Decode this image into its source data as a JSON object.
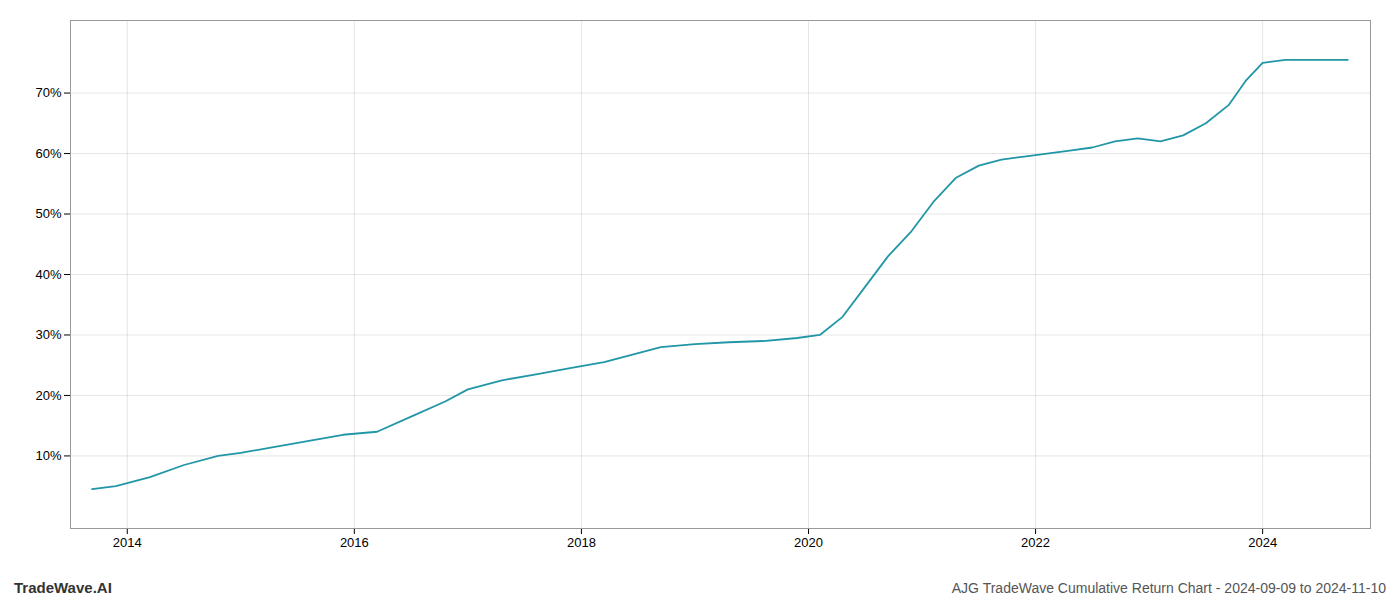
{
  "chart_data": {
    "type": "line",
    "title": "AJG TradeWave Cumulative Return Chart - 2024-09-09 to 2024-11-10",
    "annotations": [
      "TradeWave.AI"
    ],
    "color": "#2196a6",
    "x": [
      2013.69,
      2013.9,
      2014.2,
      2014.5,
      2014.8,
      2015.0,
      2015.3,
      2015.6,
      2015.9,
      2016.2,
      2016.5,
      2016.8,
      2017.0,
      2017.3,
      2017.6,
      2017.9,
      2018.2,
      2018.5,
      2018.7,
      2019.0,
      2019.3,
      2019.6,
      2019.9,
      2020.1,
      2020.3,
      2020.5,
      2020.7,
      2020.9,
      2021.1,
      2021.3,
      2021.5,
      2021.7,
      2021.9,
      2022.1,
      2022.3,
      2022.5,
      2022.7,
      2022.9,
      2023.1,
      2023.3,
      2023.5,
      2023.7,
      2023.85,
      2024.0,
      2024.2,
      2024.5,
      2024.75
    ],
    "values": [
      4.5,
      5.0,
      6.5,
      8.5,
      10.0,
      10.5,
      11.5,
      12.5,
      13.5,
      14.0,
      16.5,
      19.0,
      21.0,
      22.5,
      23.5,
      24.5,
      25.5,
      27.0,
      28.0,
      28.5,
      28.8,
      29.0,
      29.5,
      30.0,
      33.0,
      38.0,
      43.0,
      47.0,
      52.0,
      56.0,
      58.0,
      59.0,
      59.5,
      60.0,
      60.5,
      61.0,
      62.0,
      62.5,
      62.0,
      63.0,
      65.0,
      68.0,
      72.0,
      75.0,
      75.5,
      75.5,
      75.5
    ],
    "xlim": [
      2013.5,
      2024.95
    ],
    "xticks": [
      2014,
      2016,
      2018,
      2020,
      2022,
      2024
    ],
    "ylim": [
      -2,
      82
    ],
    "yticks": [
      {
        "value": 10,
        "label": "10%"
      },
      {
        "value": 20,
        "label": "20%"
      },
      {
        "value": 30,
        "label": "30%"
      },
      {
        "value": 40,
        "label": "40%"
      },
      {
        "value": 50,
        "label": "50%"
      },
      {
        "value": 60,
        "label": "60%"
      },
      {
        "value": 70,
        "label": "70%"
      }
    ],
    "grid": true
  }
}
